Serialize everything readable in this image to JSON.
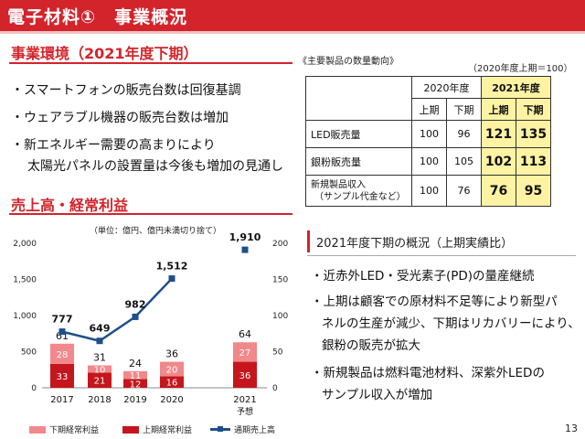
{
  "header": {
    "title": "電子材料①　事業概況"
  },
  "env": {
    "title": "事業環境（2021年度下期）",
    "bullets": [
      "・スマートフォンの販売台数は回復基調",
      "・ウェアラブル機器の販売台数は増加",
      "・新エネルギー需要の高まりにより",
      "太陽光パネルの設置量は今後も増加の見通し"
    ]
  },
  "table": {
    "caption": "《主要製品の数量動向》",
    "unit": "（2020年度上期＝100）",
    "year_2020": "2020年度",
    "year_2021": "2021年度",
    "h1": "上期",
    "h2": "下期",
    "rows": [
      {
        "label": "LED販売量",
        "v": [
          "100",
          "96",
          "121",
          "135"
        ]
      },
      {
        "label": "銀粉販売量",
        "v": [
          "100",
          "105",
          "102",
          "113"
        ]
      },
      {
        "label1": "新規製品収入",
        "label2": "（サンプル代金など）",
        "v": [
          "100",
          "76",
          "76",
          "95"
        ]
      }
    ]
  },
  "sales": {
    "title": "売上高・経常利益"
  },
  "chart_note": "（単位：億円、億円未満切り捨て）",
  "chart_data": {
    "type": "bar",
    "categories": [
      "2017",
      "2018",
      "2019",
      "2020",
      "2021"
    ],
    "category_sub": [
      "",
      "",
      "",
      "",
      "予想"
    ],
    "series": [
      {
        "name": "下期経常利益",
        "axis": "right",
        "values": [
          28,
          10,
          11,
          20,
          27
        ],
        "color": "#f1888b"
      },
      {
        "name": "上期経常利益",
        "axis": "right",
        "values": [
          33,
          21,
          12,
          16,
          36
        ],
        "color": "#c4161c"
      },
      {
        "name": "通期売上高",
        "axis": "left",
        "type": "line",
        "values": [
          777,
          649,
          982,
          1512,
          1910
        ],
        "color": "#1f4e8c"
      }
    ],
    "totals": [
      61,
      31,
      24,
      36,
      64
    ],
    "sales_labels": [
      "777",
      "649",
      "982",
      "1,512",
      "1,910"
    ],
    "left_ticks": [
      "0",
      "500",
      "1,000",
      "1,500",
      "2,000"
    ],
    "right_ticks": [
      "0",
      "50",
      "100",
      "150",
      "200"
    ],
    "ylim_left": [
      0,
      2000
    ],
    "ylim_right": [
      0,
      200
    ]
  },
  "overview": {
    "title": "2021年度下期の概況（上期実績比）",
    "bullets": [
      "・近赤外LED・受光素子(PD)の量産継続",
      "・上期は顧客での原材料不足等により新型パ",
      "ネルの生産が減少、下期はリカバリーにより、",
      "銀粉の販売が拡大",
      "・新規製品は燃料電池材料、深紫外LEDの",
      "サンプル収入が増加"
    ]
  },
  "page": "13"
}
